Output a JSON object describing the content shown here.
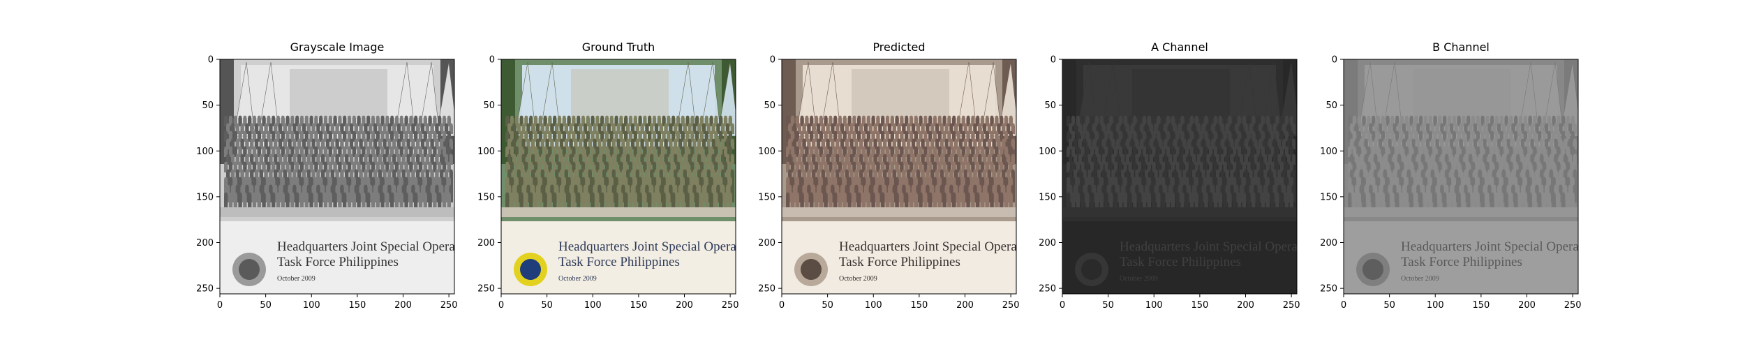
{
  "figure": {
    "panels": [
      {
        "id": "grayscale",
        "title": "Grayscale Image"
      },
      {
        "id": "ground_truth",
        "title": "Ground Truth"
      },
      {
        "id": "predicted",
        "title": "Predicted"
      },
      {
        "id": "a_channel",
        "title": "A Channel"
      },
      {
        "id": "b_channel",
        "title": "B Channel"
      }
    ],
    "x_ticks": [
      "0",
      "50",
      "100",
      "150",
      "200",
      "250"
    ],
    "y_ticks": [
      "0",
      "50",
      "100",
      "150",
      "200",
      "250"
    ],
    "x_range": [
      0,
      256
    ],
    "y_range": [
      0,
      256
    ],
    "banner_text": {
      "line1": "Headquarters Joint Special Operations",
      "line2": "Task Force Philippines",
      "date": "October 2009"
    }
  }
}
